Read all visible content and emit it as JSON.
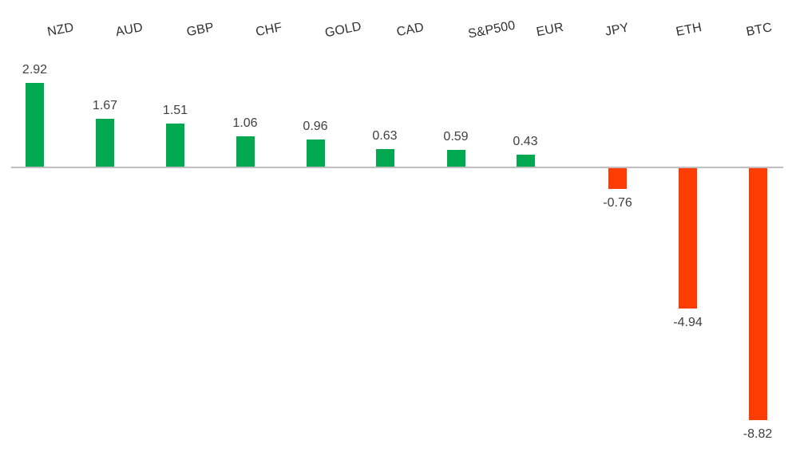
{
  "chart_data": {
    "type": "bar",
    "categories": [
      "NZD",
      "AUD",
      "GBP",
      "CHF",
      "GOLD",
      "CAD",
      "S&P500",
      "EUR",
      "JPY",
      "ETH",
      "BTC"
    ],
    "values": [
      2.92,
      1.67,
      1.51,
      1.06,
      0.96,
      0.63,
      0.59,
      0.43,
      -0.76,
      -4.94,
      -8.82
    ],
    "data_labels": [
      "2.92",
      "1.67",
      "1.51",
      "1.06",
      "0.96",
      "0.63",
      "0.59",
      "0.43",
      "-0.76",
      "-4.94",
      "-8.82"
    ],
    "xlabel": "",
    "ylabel": "",
    "ylim": [
      -10.2,
      5.8
    ],
    "grid": false,
    "legend": false,
    "baseline_value": 0,
    "category_label_position": "top",
    "category_label_rotation_deg": -11,
    "colors": {
      "positive_bar": "#00A94F",
      "negative_bar": "#FB3D01",
      "axis_line": "#BFBFBF",
      "category_text": "#303030",
      "value_text": "#404040",
      "background": "#FFFFFF"
    }
  }
}
